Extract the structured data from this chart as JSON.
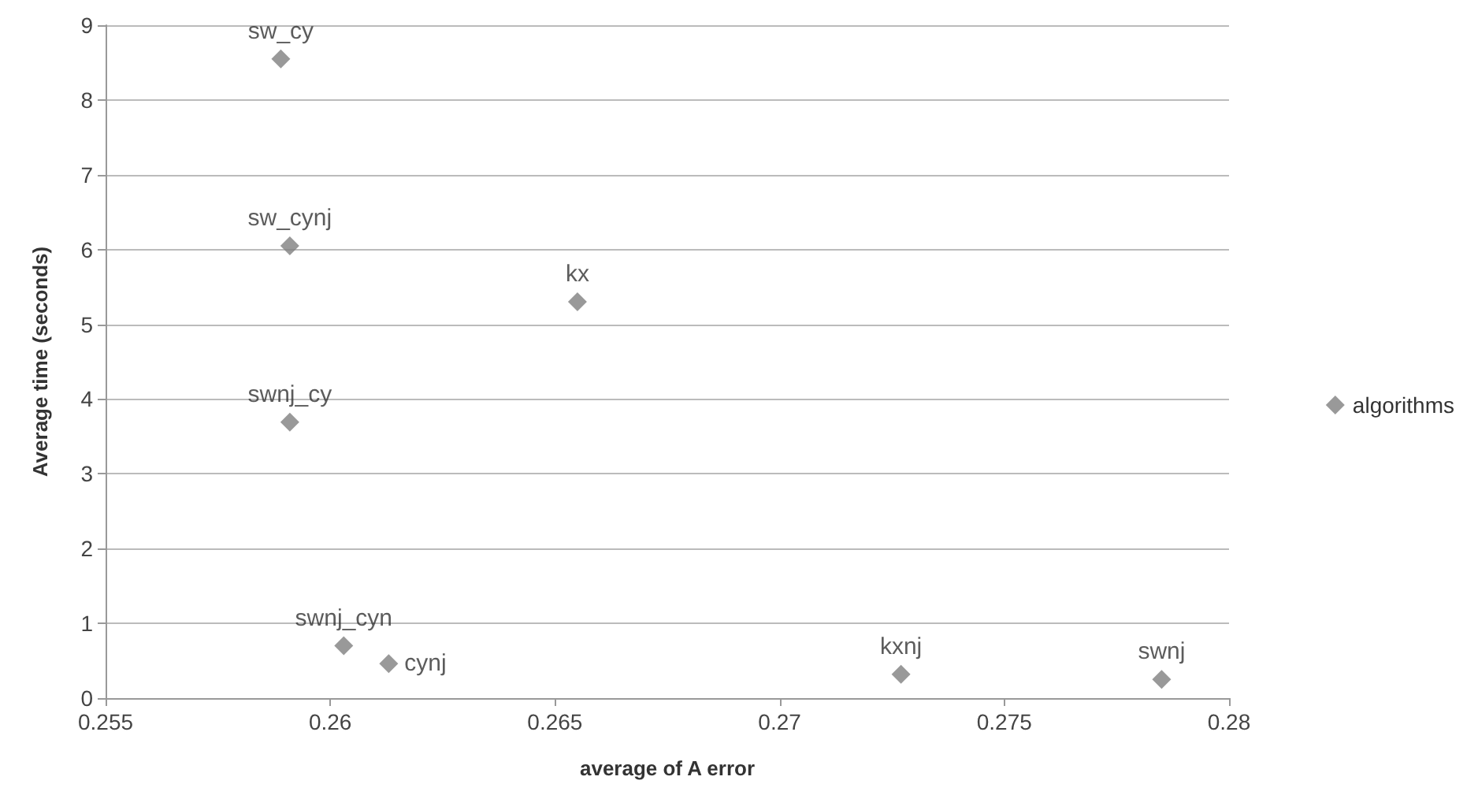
{
  "chart_data": {
    "type": "scatter",
    "xlabel": "average of A error",
    "ylabel": "Average time (seconds)",
    "series": [
      {
        "name": "algorithms",
        "color": "#7f7f7f",
        "x": [
          0.2589,
          0.2591,
          0.2655,
          0.2591,
          0.2603,
          0.2613,
          0.2727,
          0.2785
        ],
        "values": [
          8.55,
          6.05,
          5.3,
          3.69,
          0.7,
          0.46,
          0.32,
          0.25
        ]
      }
    ],
    "annotations": [
      {
        "text": "sw_cy",
        "x": 0.2589,
        "y": 8.55
      },
      {
        "text": "sw_cynj",
        "x": 0.2591,
        "y": 6.05
      },
      {
        "text": "kx",
        "x": 0.2655,
        "y": 5.3
      },
      {
        "text": "swnj_cy",
        "x": 0.2591,
        "y": 3.69
      },
      {
        "text": "swnj_cyn",
        "x": 0.2603,
        "y": 0.7
      },
      {
        "text": "cynj",
        "x": 0.2613,
        "y": 0.46
      },
      {
        "text": "kxnj",
        "x": 0.2727,
        "y": 0.32
      },
      {
        "text": "swnj",
        "x": 0.2785,
        "y": 0.25
      }
    ],
    "xlim": [
      0.255,
      0.28
    ],
    "xticks": [
      0.255,
      0.26,
      0.265,
      0.27,
      0.275,
      0.28
    ],
    "ylim": [
      0,
      9
    ],
    "yticks": [
      0,
      1,
      2,
      3,
      4,
      5,
      6,
      7,
      8,
      9
    ],
    "grid": "y",
    "legend": "right",
    "marker": "diamond"
  }
}
